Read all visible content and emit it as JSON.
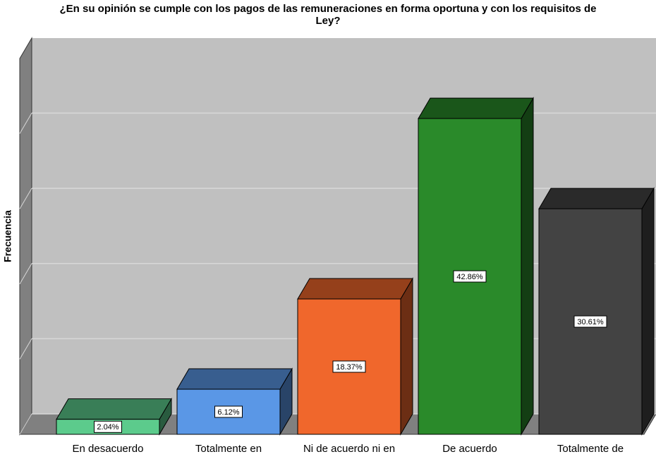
{
  "chart_data": {
    "type": "bar3d",
    "title": "¿En su opinión se cumple con los pagos de las remuneraciones en forma oportuna y con los requisitos de",
    "title_line2": "Ley?",
    "y_label": "Frecuencia",
    "categories": [
      "En desacuerdo",
      "Totalmente en",
      "Ni de acuerdo ni en",
      "De acuerdo",
      "Totalmente de"
    ],
    "values": [
      2.04,
      6.12,
      18.37,
      42.86,
      30.61
    ],
    "value_labels": [
      "2.04%",
      "6.12%",
      "18.37%",
      "42.86%",
      "30.61%"
    ],
    "colors": [
      "#5ccb8c",
      "#5a97e6",
      "#f0672c",
      "#2a8a2a",
      "#434343"
    ],
    "ylim": [
      0,
      51
    ],
    "yticks": [
      0,
      10.2,
      20.41,
      30.61,
      40.82
    ],
    "grid": true
  }
}
